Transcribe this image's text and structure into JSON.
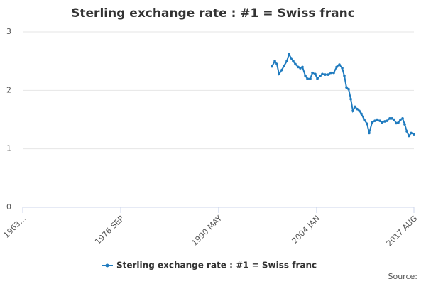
{
  "chart_data": {
    "type": "line",
    "title": "Sterling exchange rate : #1 = Swiss franc",
    "source_label": "Source:",
    "x": [
      1997.77,
      1998.17,
      1998.46,
      1998.76,
      1999.16,
      1999.45,
      1999.85,
      2000.15,
      2000.45,
      2000.74,
      2001.04,
      2001.44,
      2001.73,
      2002.03,
      2002.43,
      2002.72,
      2003.12,
      2003.42,
      2003.81,
      2004.11,
      2004.51,
      2004.8,
      2005.2,
      2005.6,
      2005.99,
      2006.39,
      2006.79,
      2007.18,
      2007.58,
      2007.87,
      2008.17,
      2008.47,
      2008.77,
      2009.06,
      2009.36,
      2009.66,
      2009.95,
      2010.25,
      2010.65,
      2011.04,
      2011.34,
      2011.74,
      2012.13,
      2012.43,
      2012.83,
      2013.12,
      2013.52,
      2013.82,
      2014.21,
      2014.51,
      2014.81,
      2015.11,
      2015.4,
      2015.7,
      2016.0,
      2016.29,
      2016.59,
      2016.89,
      2017.19,
      2017.58
    ],
    "series": [
      {
        "name": "Sterling exchange rate : #1 = Swiss franc",
        "color": "#1f7bbf",
        "values": [
          2.41,
          2.5,
          2.45,
          2.28,
          2.35,
          2.42,
          2.5,
          2.62,
          2.55,
          2.5,
          2.45,
          2.4,
          2.38,
          2.4,
          2.25,
          2.2,
          2.2,
          2.3,
          2.28,
          2.2,
          2.25,
          2.28,
          2.27,
          2.27,
          2.3,
          2.3,
          2.4,
          2.44,
          2.38,
          2.25,
          2.05,
          2.02,
          1.85,
          1.65,
          1.72,
          1.68,
          1.65,
          1.6,
          1.5,
          1.43,
          1.27,
          1.45,
          1.48,
          1.5,
          1.48,
          1.45,
          1.47,
          1.48,
          1.52,
          1.52,
          1.5,
          1.44,
          1.45,
          1.5,
          1.52,
          1.42,
          1.3,
          1.22,
          1.27,
          1.25
        ]
      }
    ],
    "xlim": [
      1963.0,
      2017.58
    ],
    "xticks": [
      {
        "value": 1963.0,
        "label": "1963…"
      },
      {
        "value": 1976.67,
        "label": "1976 SEP"
      },
      {
        "value": 1990.33,
        "label": "1990 MAY"
      },
      {
        "value": 2004.0,
        "label": "2004 JAN"
      },
      {
        "value": 2017.58,
        "label": "2017 AUG"
      }
    ],
    "ylim": [
      0,
      3
    ],
    "yticks": [
      0,
      1,
      2,
      3
    ],
    "grid": true,
    "legend": "bottom"
  }
}
